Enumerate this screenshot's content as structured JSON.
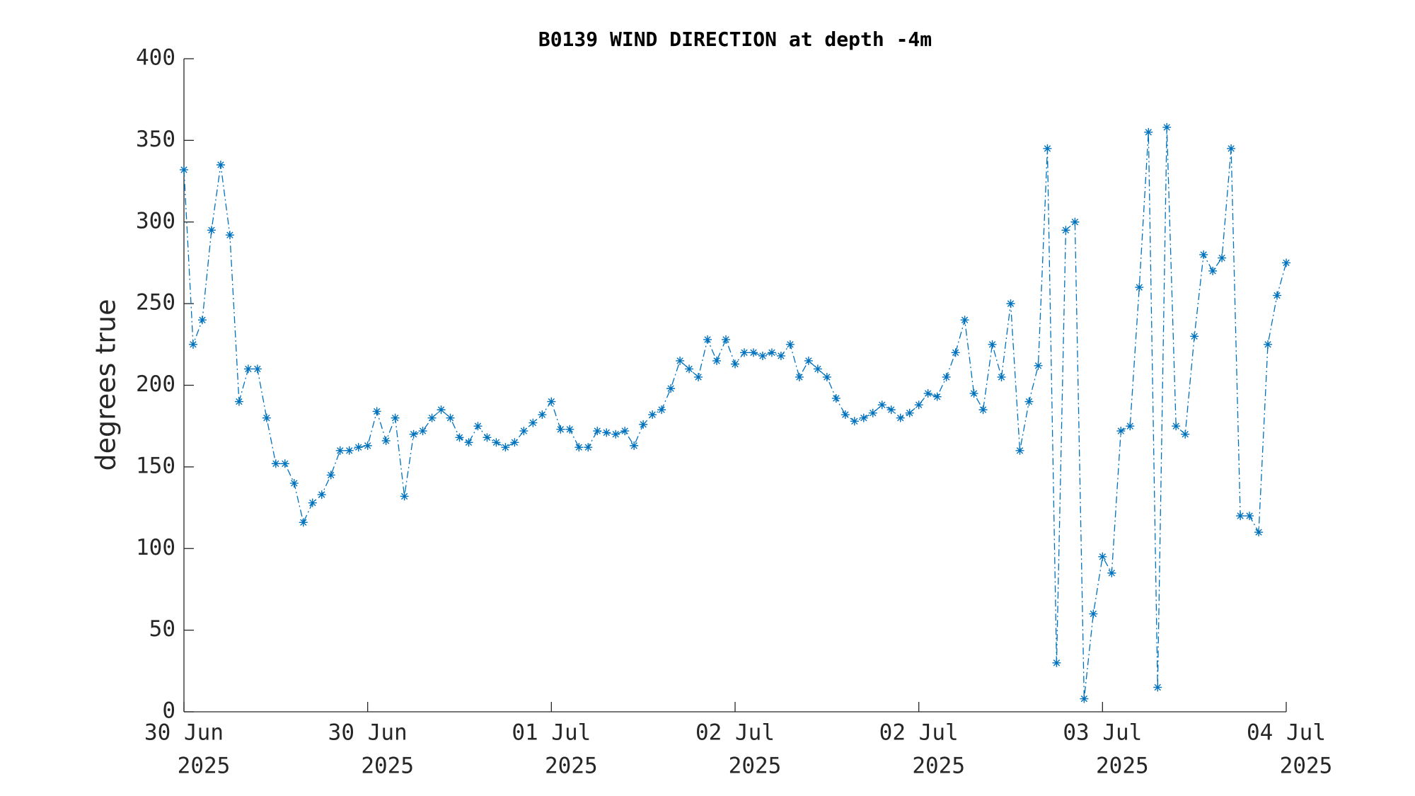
{
  "chart_data": {
    "type": "line",
    "title": "B0139 WIND DIRECTION at depth -4m",
    "ylabel": "degrees true",
    "x": [
      0,
      0.05,
      0.1,
      0.15,
      0.2,
      0.25,
      0.3,
      0.35,
      0.4,
      0.45,
      0.5,
      0.55,
      0.6,
      0.65,
      0.7,
      0.75,
      0.8,
      0.85,
      0.9,
      0.95,
      1,
      1.05,
      1.1,
      1.15,
      1.2,
      1.25,
      1.3,
      1.35,
      1.4,
      1.45,
      1.5,
      1.55,
      1.6,
      1.65,
      1.7,
      1.75,
      1.8,
      1.85,
      1.9,
      1.95,
      2,
      2.05,
      2.1,
      2.15,
      2.2,
      2.25,
      2.3,
      2.35,
      2.4,
      2.45,
      2.5,
      2.55,
      2.6,
      2.65,
      2.7,
      2.75,
      2.8,
      2.85,
      2.9,
      2.95,
      3,
      3.05,
      3.1,
      3.15,
      3.2,
      3.25,
      3.3,
      3.35,
      3.4,
      3.45,
      3.5,
      3.55,
      3.6,
      3.65,
      3.7,
      3.75,
      3.8,
      3.85,
      3.9,
      3.95,
      4,
      4.05,
      4.1,
      4.15,
      4.2,
      4.25,
      4.3,
      4.35,
      4.4,
      4.45,
      4.5,
      4.55,
      4.6,
      4.65,
      4.7,
      4.75,
      4.8,
      4.85,
      4.9,
      4.95,
      5,
      5.05,
      5.1,
      5.15,
      5.2,
      5.25,
      5.3,
      5.35,
      5.4,
      5.45,
      5.5,
      5.55,
      5.6,
      5.65,
      5.7,
      5.75,
      5.8,
      5.85,
      5.9,
      5.95,
      6
    ],
    "series": [
      {
        "name": "wind direction",
        "color": "#0072bd",
        "values": [
          332,
          225,
          240,
          295,
          335,
          292,
          190,
          210,
          210,
          180,
          152,
          152,
          140,
          116,
          128,
          133,
          145,
          160,
          160,
          162,
          163,
          184,
          166,
          180,
          132,
          170,
          172,
          180,
          185,
          180,
          168,
          165,
          175,
          168,
          165,
          162,
          165,
          172,
          177,
          182,
          190,
          173,
          173,
          162,
          162,
          172,
          171,
          170,
          172,
          163,
          176,
          182,
          185,
          198,
          215,
          210,
          205,
          228,
          215,
          228,
          213,
          220,
          220,
          218,
          220,
          218,
          225,
          205,
          215,
          210,
          205,
          192,
          182,
          178,
          180,
          183,
          188,
          185,
          180,
          183,
          188,
          195,
          193,
          205,
          220,
          240,
          195,
          185,
          225,
          205,
          250,
          160,
          190,
          212,
          345,
          30,
          295,
          300,
          8,
          60,
          95,
          85,
          172,
          175,
          260,
          355,
          15,
          358,
          175,
          170,
          230,
          280,
          270,
          278,
          345,
          120,
          120,
          110,
          225,
          255,
          275
        ]
      }
    ],
    "xlim": [
      0,
      6
    ],
    "xticks": [
      {
        "value": 0,
        "label": "30 Jun",
        "sublabel": "2025"
      },
      {
        "value": 1,
        "label": "30 Jun",
        "sublabel": "2025"
      },
      {
        "value": 2,
        "label": "01 Jul",
        "sublabel": "2025"
      },
      {
        "value": 3,
        "label": "02 Jul",
        "sublabel": "2025"
      },
      {
        "value": 4,
        "label": "02 Jul",
        "sublabel": "2025"
      },
      {
        "value": 5,
        "label": "03 Jul",
        "sublabel": "2025"
      },
      {
        "value": 6,
        "label": "04 Jul",
        "sublabel": "2025"
      }
    ],
    "ylim": [
      0,
      400
    ],
    "yticks": [
      0,
      50,
      100,
      150,
      200,
      250,
      300,
      350,
      400
    ],
    "grid": false
  }
}
